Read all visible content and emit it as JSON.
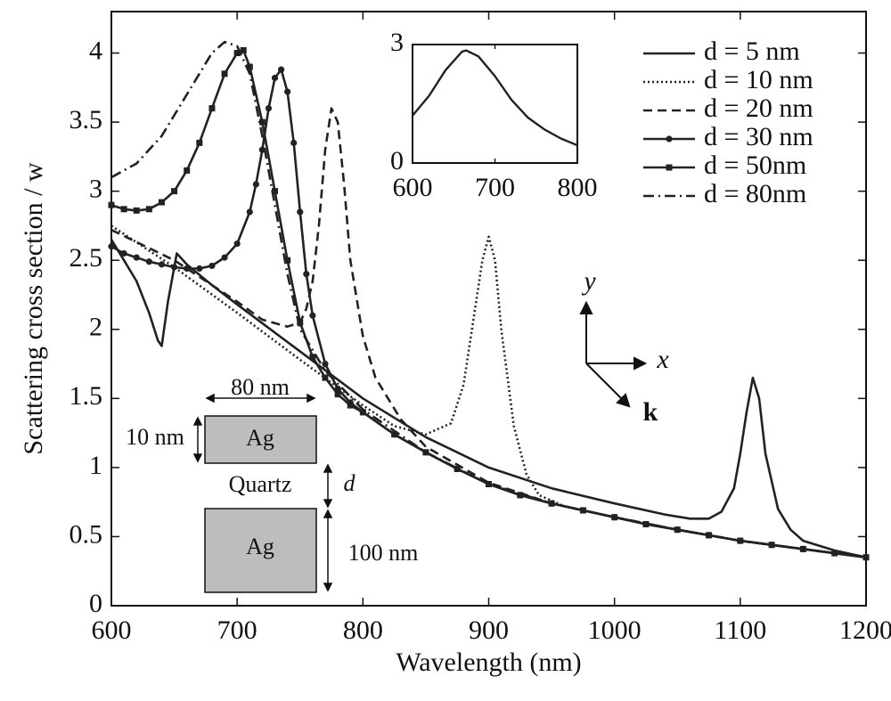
{
  "chart_data": [
    {
      "type": "line",
      "ylabel": "Scattering cross section / w",
      "xlabel": "Wavelength (nm)",
      "xlim": [
        600,
        1200
      ],
      "ylim": [
        0,
        4.3
      ],
      "xticks": [
        600,
        700,
        800,
        900,
        1000,
        1100,
        1200
      ],
      "yticks": [
        0,
        0.5,
        1,
        1.5,
        2,
        2.5,
        3,
        3.5,
        4
      ],
      "legend": "upper right",
      "color": "#222222",
      "series": [
        {
          "name": "d = 5 nm",
          "style": "solid",
          "marker": null,
          "x": [
            600,
            610,
            620,
            630,
            637,
            640,
            645,
            652,
            660,
            680,
            700,
            750,
            800,
            850,
            900,
            950,
            1000,
            1040,
            1060,
            1075,
            1085,
            1095,
            1100,
            1105,
            1110,
            1115,
            1120,
            1130,
            1140,
            1150,
            1175,
            1200
          ],
          "values": [
            2.65,
            2.5,
            2.35,
            2.12,
            1.92,
            1.88,
            2.2,
            2.55,
            2.47,
            2.32,
            2.18,
            1.84,
            1.5,
            1.22,
            1.0,
            0.85,
            0.74,
            0.66,
            0.63,
            0.63,
            0.68,
            0.85,
            1.1,
            1.4,
            1.65,
            1.5,
            1.1,
            0.7,
            0.55,
            0.47,
            0.4,
            0.35
          ]
        },
        {
          "name": "d = 10 nm",
          "style": "dotted",
          "marker": null,
          "x": [
            600,
            650,
            700,
            750,
            800,
            825,
            850,
            870,
            880,
            890,
            895,
            900,
            905,
            910,
            920,
            930,
            940,
            960,
            1000,
            1050,
            1100,
            1150,
            1200
          ],
          "values": [
            2.75,
            2.45,
            2.12,
            1.78,
            1.45,
            1.3,
            1.24,
            1.32,
            1.6,
            2.2,
            2.5,
            2.67,
            2.5,
            2.0,
            1.3,
            0.95,
            0.8,
            0.72,
            0.64,
            0.55,
            0.47,
            0.41,
            0.35
          ]
        },
        {
          "name": "d = 20 nm",
          "style": "dashed",
          "marker": null,
          "x": [
            600,
            650,
            700,
            720,
            740,
            750,
            755,
            760,
            765,
            770,
            775,
            780,
            785,
            790,
            800,
            810,
            830,
            850,
            900,
            950,
            1000,
            1050,
            1100,
            1150,
            1200
          ],
          "values": [
            2.72,
            2.5,
            2.2,
            2.07,
            2.02,
            2.05,
            2.15,
            2.35,
            2.75,
            3.3,
            3.6,
            3.5,
            3.05,
            2.5,
            1.95,
            1.65,
            1.35,
            1.15,
            0.89,
            0.74,
            0.64,
            0.55,
            0.47,
            0.41,
            0.35
          ]
        },
        {
          "name": "d = 30 nm",
          "style": "solid",
          "marker": "circle",
          "x": [
            600,
            610,
            620,
            630,
            640,
            650,
            660,
            670,
            680,
            690,
            700,
            710,
            715,
            720,
            725,
            730,
            735,
            740,
            745,
            750,
            755,
            760,
            770,
            780,
            790,
            800,
            825,
            850,
            875,
            900,
            925,
            950,
            975,
            1000,
            1025,
            1050,
            1075,
            1100,
            1125,
            1150,
            1175,
            1200
          ],
          "values": [
            2.6,
            2.55,
            2.52,
            2.49,
            2.47,
            2.45,
            2.44,
            2.44,
            2.46,
            2.52,
            2.62,
            2.85,
            3.05,
            3.3,
            3.6,
            3.82,
            3.88,
            3.72,
            3.35,
            2.85,
            2.4,
            2.1,
            1.75,
            1.57,
            1.47,
            1.4,
            1.24,
            1.11,
            0.99,
            0.88,
            0.8,
            0.74,
            0.69,
            0.64,
            0.59,
            0.55,
            0.51,
            0.47,
            0.44,
            0.41,
            0.38,
            0.35
          ]
        },
        {
          "name": "d = 50nm",
          "style": "solid",
          "marker": "square",
          "x": [
            600,
            610,
            620,
            630,
            640,
            650,
            660,
            670,
            680,
            690,
            700,
            705,
            710,
            720,
            730,
            740,
            750,
            760,
            770,
            780,
            790,
            800,
            825,
            850,
            875,
            900,
            925,
            950,
            975,
            1000,
            1025,
            1050,
            1075,
            1100,
            1125,
            1150,
            1175,
            1200
          ],
          "values": [
            2.9,
            2.87,
            2.86,
            2.87,
            2.92,
            3.0,
            3.15,
            3.35,
            3.6,
            3.85,
            4.0,
            4.02,
            3.9,
            3.5,
            3.0,
            2.5,
            2.05,
            1.8,
            1.65,
            1.53,
            1.45,
            1.4,
            1.24,
            1.11,
            0.99,
            0.88,
            0.8,
            0.74,
            0.69,
            0.64,
            0.59,
            0.55,
            0.51,
            0.47,
            0.44,
            0.41,
            0.38,
            0.35
          ]
        },
        {
          "name": "d = 80nm",
          "style": "dashdot",
          "marker": null,
          "x": [
            600,
            620,
            640,
            660,
            680,
            690,
            700,
            710,
            720,
            730,
            740,
            750,
            770,
            800,
            850,
            900,
            950,
            1000,
            1050,
            1100,
            1150,
            1200
          ],
          "values": [
            3.1,
            3.2,
            3.4,
            3.7,
            4.0,
            4.08,
            4.05,
            3.85,
            3.4,
            2.9,
            2.4,
            2.0,
            1.7,
            1.42,
            1.11,
            0.88,
            0.74,
            0.64,
            0.55,
            0.47,
            0.41,
            0.35
          ]
        }
      ]
    },
    {
      "type": "line",
      "xlim": [
        600,
        800
      ],
      "ylim": [
        0,
        3
      ],
      "xticks": [
        600,
        700,
        800
      ],
      "yticks": [
        0,
        3
      ],
      "color": "#222222",
      "series": [
        {
          "style": "solid",
          "marker": null,
          "x": [
            600,
            620,
            640,
            660,
            665,
            680,
            700,
            720,
            740,
            760,
            780,
            800
          ],
          "values": [
            1.2,
            1.7,
            2.35,
            2.82,
            2.85,
            2.7,
            2.2,
            1.6,
            1.15,
            0.85,
            0.62,
            0.45
          ]
        }
      ]
    }
  ],
  "schematic": {
    "width_label": "80 nm",
    "top_thickness": "10 nm",
    "top_material": "Ag",
    "gap_material": "Quartz",
    "gap_label": "d",
    "bottom_material": "Ag",
    "bottom_thickness": "100 nm"
  },
  "axes_icon": {
    "y": "y",
    "x": "x",
    "k": "k"
  }
}
